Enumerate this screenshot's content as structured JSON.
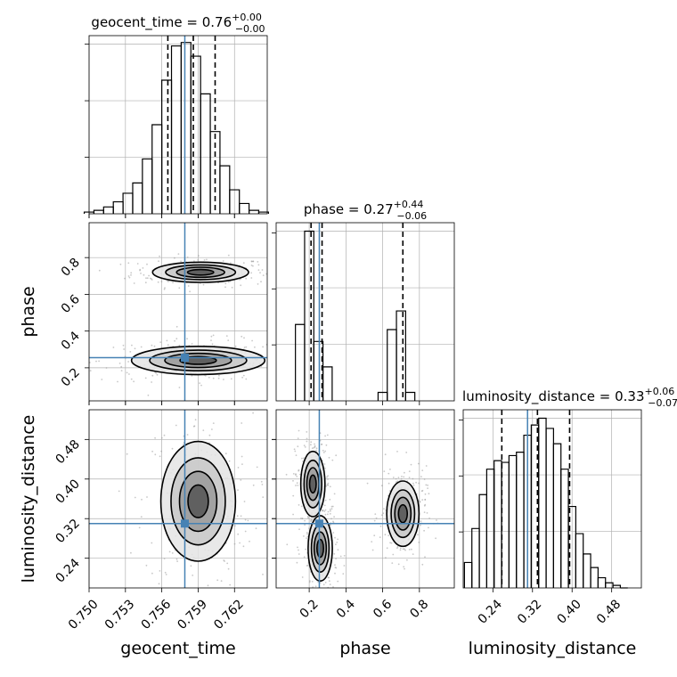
{
  "chart_data": [
    {
      "panel": "geocent_time-histogram",
      "type": "histogram",
      "title": {
        "param": "geocent_time",
        "median": "0.76",
        "plus": "+0.00",
        "minus": "−0.00"
      },
      "x": [
        0.75,
        0.7508,
        0.7516,
        0.7524,
        0.7532,
        0.754,
        0.7548,
        0.7556,
        0.7564,
        0.7572,
        0.758,
        0.7588,
        0.7596,
        0.7604,
        0.7612,
        0.762,
        0.7628,
        0.7636,
        0.7644
      ],
      "values": [
        0.01,
        0.02,
        0.04,
        0.07,
        0.12,
        0.18,
        0.32,
        0.52,
        0.78,
        0.98,
        1.0,
        0.92,
        0.7,
        0.48,
        0.28,
        0.14,
        0.06,
        0.02,
        0.01
      ],
      "quantiles": [
        0.7565,
        0.7586,
        0.7604
      ],
      "truth": 0.7579,
      "xlim": [
        0.75,
        0.7647
      ],
      "ylim": [
        0,
        1.04
      ],
      "grid": true
    },
    {
      "panel": "phase-vs-geocent_time",
      "type": "contour",
      "x_param": "geocent_time",
      "y_param": "phase",
      "xlim": [
        0.75,
        0.7647
      ],
      "ylim": [
        0.02,
        0.99
      ],
      "truth": [
        0.7579,
        0.255
      ],
      "grid": true,
      "modes": [
        {
          "center": [
            0.7592,
            0.72
          ],
          "spread": [
            0.0018,
            0.025
          ]
        },
        {
          "center": [
            0.759,
            0.24
          ],
          "spread": [
            0.0025,
            0.035
          ]
        }
      ]
    },
    {
      "panel": "phase-histogram",
      "type": "histogram",
      "title": {
        "param": "phase",
        "median": "0.27",
        "plus": "+0.44",
        "minus": "−0.06"
      },
      "x": [
        0.15,
        0.2,
        0.25,
        0.3,
        0.6,
        0.65,
        0.7,
        0.75
      ],
      "values": [
        0.45,
        1.0,
        0.35,
        0.2,
        0.05,
        0.42,
        0.53,
        0.05
      ],
      "quantiles": [
        0.21,
        0.27,
        0.71
      ],
      "truth": 0.255,
      "xlim": [
        0.02,
        0.99
      ],
      "ylim": [
        0,
        1.05
      ],
      "grid": true
    },
    {
      "panel": "luminosity_distance-vs-geocent_time",
      "type": "contour",
      "x_param": "geocent_time",
      "y_param": "luminosity_distance",
      "xlim": [
        0.75,
        0.7647
      ],
      "ylim": [
        0.18,
        0.54
      ],
      "truth": [
        0.7579,
        0.31
      ],
      "grid": true,
      "modes": [
        {
          "center": [
            0.759,
            0.355
          ],
          "spread": [
            0.0014,
            0.055
          ]
        }
      ]
    },
    {
      "panel": "luminosity_distance-vs-phase",
      "type": "contour",
      "x_param": "phase",
      "y_param": "luminosity_distance",
      "xlim": [
        0.02,
        0.99
      ],
      "ylim": [
        0.18,
        0.54
      ],
      "truth": [
        0.255,
        0.31
      ],
      "grid": true,
      "modes": [
        {
          "center": [
            0.22,
            0.39
          ],
          "spread": [
            0.03,
            0.03
          ]
        },
        {
          "center": [
            0.26,
            0.26
          ],
          "spread": [
            0.03,
            0.03
          ]
        },
        {
          "center": [
            0.71,
            0.33
          ],
          "spread": [
            0.04,
            0.03
          ]
        }
      ]
    },
    {
      "panel": "luminosity_distance-histogram",
      "type": "histogram",
      "title": {
        "param": "luminosity_distance",
        "median": "0.33",
        "plus": "+0.06",
        "minus": "−0.07"
      },
      "x": [
        0.19,
        0.205,
        0.22,
        0.235,
        0.25,
        0.265,
        0.28,
        0.295,
        0.31,
        0.325,
        0.34,
        0.355,
        0.37,
        0.385,
        0.4,
        0.415,
        0.43,
        0.445,
        0.46,
        0.475,
        0.49,
        0.505
      ],
      "values": [
        0.15,
        0.35,
        0.55,
        0.7,
        0.75,
        0.74,
        0.78,
        0.8,
        0.9,
        0.96,
        1.0,
        0.94,
        0.85,
        0.7,
        0.48,
        0.32,
        0.2,
        0.12,
        0.06,
        0.03,
        0.015,
        0.0
      ],
      "quantiles": [
        0.258,
        0.33,
        0.395
      ],
      "truth": 0.31,
      "xlim": [
        0.18,
        0.54
      ],
      "ylim": [
        0,
        1.05
      ],
      "grid": true
    }
  ],
  "axes": {
    "geocent_time": {
      "label": "geocent_time",
      "ticks": [
        0.75,
        0.753,
        0.756,
        0.759,
        0.762
      ],
      "tick_labels": [
        "0.750",
        "0.753",
        "0.756",
        "0.759",
        "0.762"
      ]
    },
    "phase": {
      "label": "phase",
      "ticks": [
        0.2,
        0.4,
        0.6,
        0.8
      ],
      "tick_labels": [
        "0.2",
        "0.4",
        "0.6",
        "0.8"
      ]
    },
    "luminosity_distance": {
      "label": "luminosity_distance",
      "ticks": [
        0.24,
        0.32,
        0.4,
        0.48
      ],
      "tick_labels": [
        "0.24",
        "0.32",
        "0.40",
        "0.48"
      ]
    }
  },
  "colors": {
    "truth": "#4682b4",
    "hist": "#000000",
    "grid": "#b0b0b0",
    "points": "#9a9a9a"
  }
}
